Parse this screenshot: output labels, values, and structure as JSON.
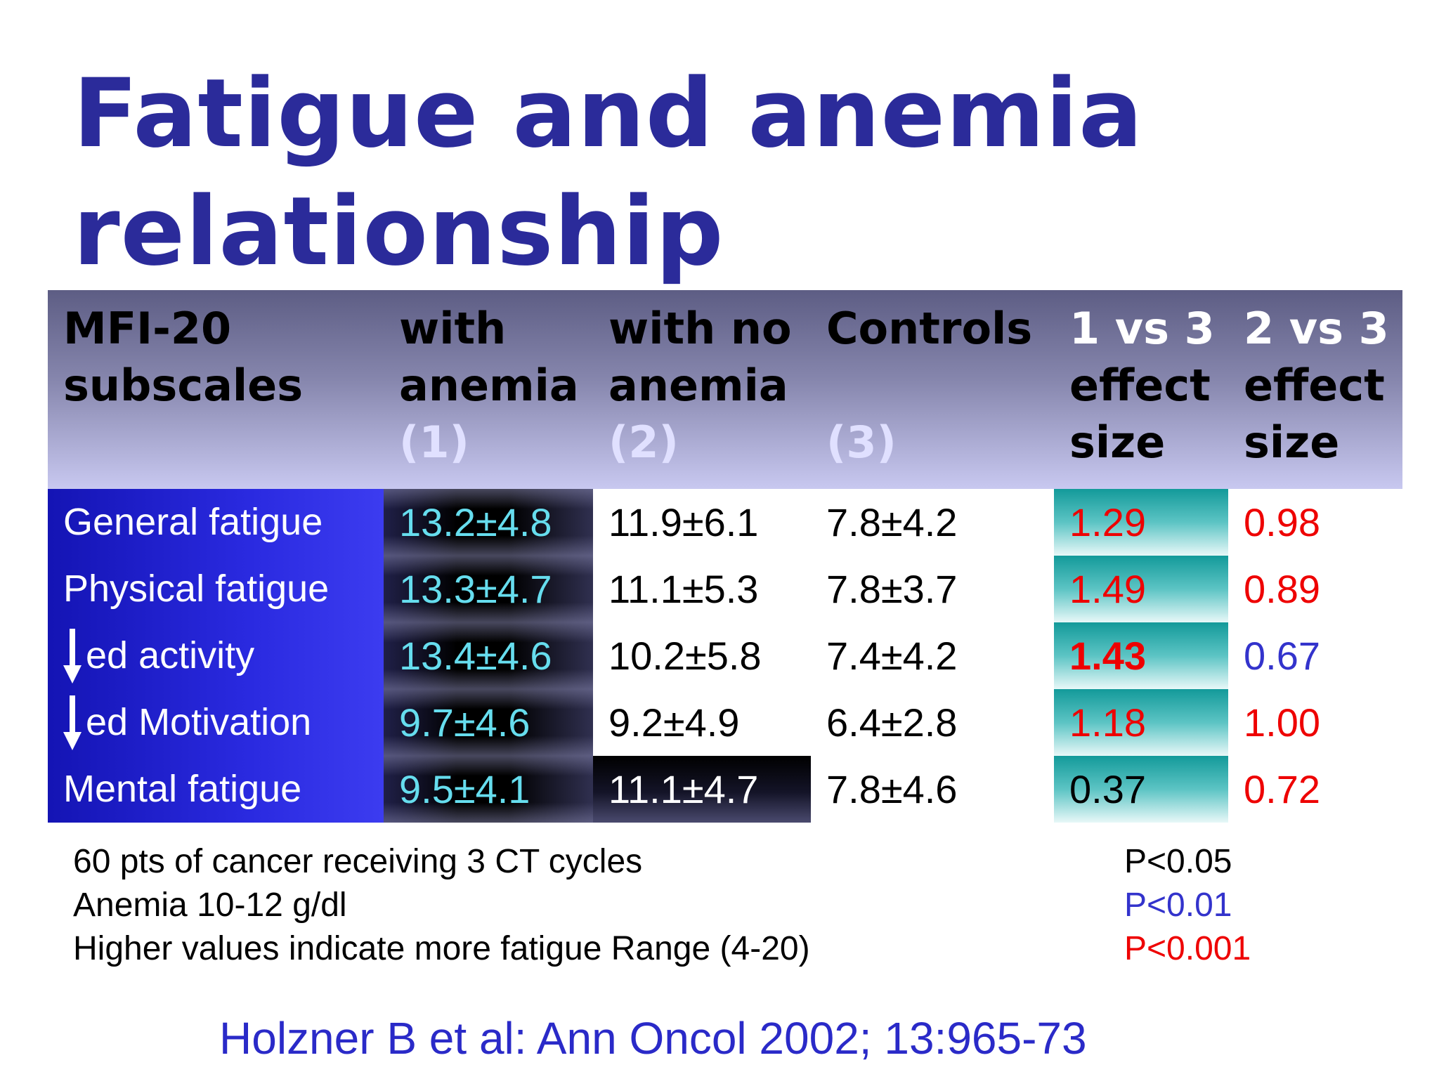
{
  "title": {
    "line1": "Fatigue and anemia",
    "line2": "relationship"
  },
  "colors": {
    "title": "#2b2b9a",
    "p005": "#000000",
    "p001": "#3333cc",
    "p0001": "#ee0000",
    "citation": "#2a2ac8"
  },
  "table": {
    "headers": [
      {
        "lines": [
          "MFI-20",
          "subscales"
        ]
      },
      {
        "lines": [
          "with",
          "anemia"
        ],
        "sub": "(1)"
      },
      {
        "lines": [
          "with no",
          "anemia"
        ],
        "sub": "(2)"
      },
      {
        "lines": [
          "Controls",
          ""
        ],
        "sub": "(3)"
      },
      {
        "top": "1 vs 3",
        "lines": [
          "effect",
          "size"
        ]
      },
      {
        "top": "2 vs 3",
        "lines": [
          "effect",
          "size"
        ]
      }
    ],
    "rows": [
      {
        "label": "General fatigue",
        "arrow": false,
        "anemia": "13.2±4.8",
        "no_anemia": "11.9±6.1",
        "controls": "7.8±4.2",
        "es13": "1.29",
        "es13_sig": "p0001",
        "es13_bold": false,
        "es23": "0.98",
        "es23_sig": "p0001"
      },
      {
        "label": "Physical fatigue",
        "arrow": false,
        "anemia": "13.3±4.7",
        "no_anemia": "11.1±5.3",
        "controls": "7.8±3.7",
        "es13": "1.49",
        "es13_sig": "p0001",
        "es13_bold": false,
        "es23": "0.89",
        "es23_sig": "p0001"
      },
      {
        "label": "ed activity",
        "arrow": true,
        "anemia": "13.4±4.6",
        "no_anemia": "10.2±5.8",
        "controls": "7.4±4.2",
        "es13": "1.43",
        "es13_sig": "p0001",
        "es13_bold": true,
        "es23": "0.67",
        "es23_sig": "p001"
      },
      {
        "label": "ed Motivation",
        "arrow": true,
        "anemia": "9.7±4.6",
        "no_anemia": "9.2±4.9",
        "controls": "6.4±2.8",
        "es13": "1.18",
        "es13_sig": "p0001",
        "es13_bold": false,
        "es23": "1.00",
        "es23_sig": "p0001"
      },
      {
        "label": "Mental fatigue",
        "arrow": false,
        "anemia": "9.5±4.1",
        "no_anemia": "11.1±4.7",
        "no_anemia_dark": true,
        "controls": "7.8±4.6",
        "es13": "0.37",
        "es13_sig": "p005",
        "es13_bold": false,
        "es23": "0.72",
        "es23_sig": "p0001"
      }
    ]
  },
  "notes": [
    "60 pts of cancer receiving 3 CT cycles",
    "Anemia 10-12 g/dl",
    "Higher values indicate more fatigue Range (4-20)"
  ],
  "legend": [
    {
      "text": "P<0.05",
      "sig": "p005"
    },
    {
      "text": "P<0.01",
      "sig": "p001"
    },
    {
      "text": "P<0.001",
      "sig": "p0001"
    }
  ],
  "citation": "Holzner B et al: Ann Oncol 2002; 13:965-73"
}
